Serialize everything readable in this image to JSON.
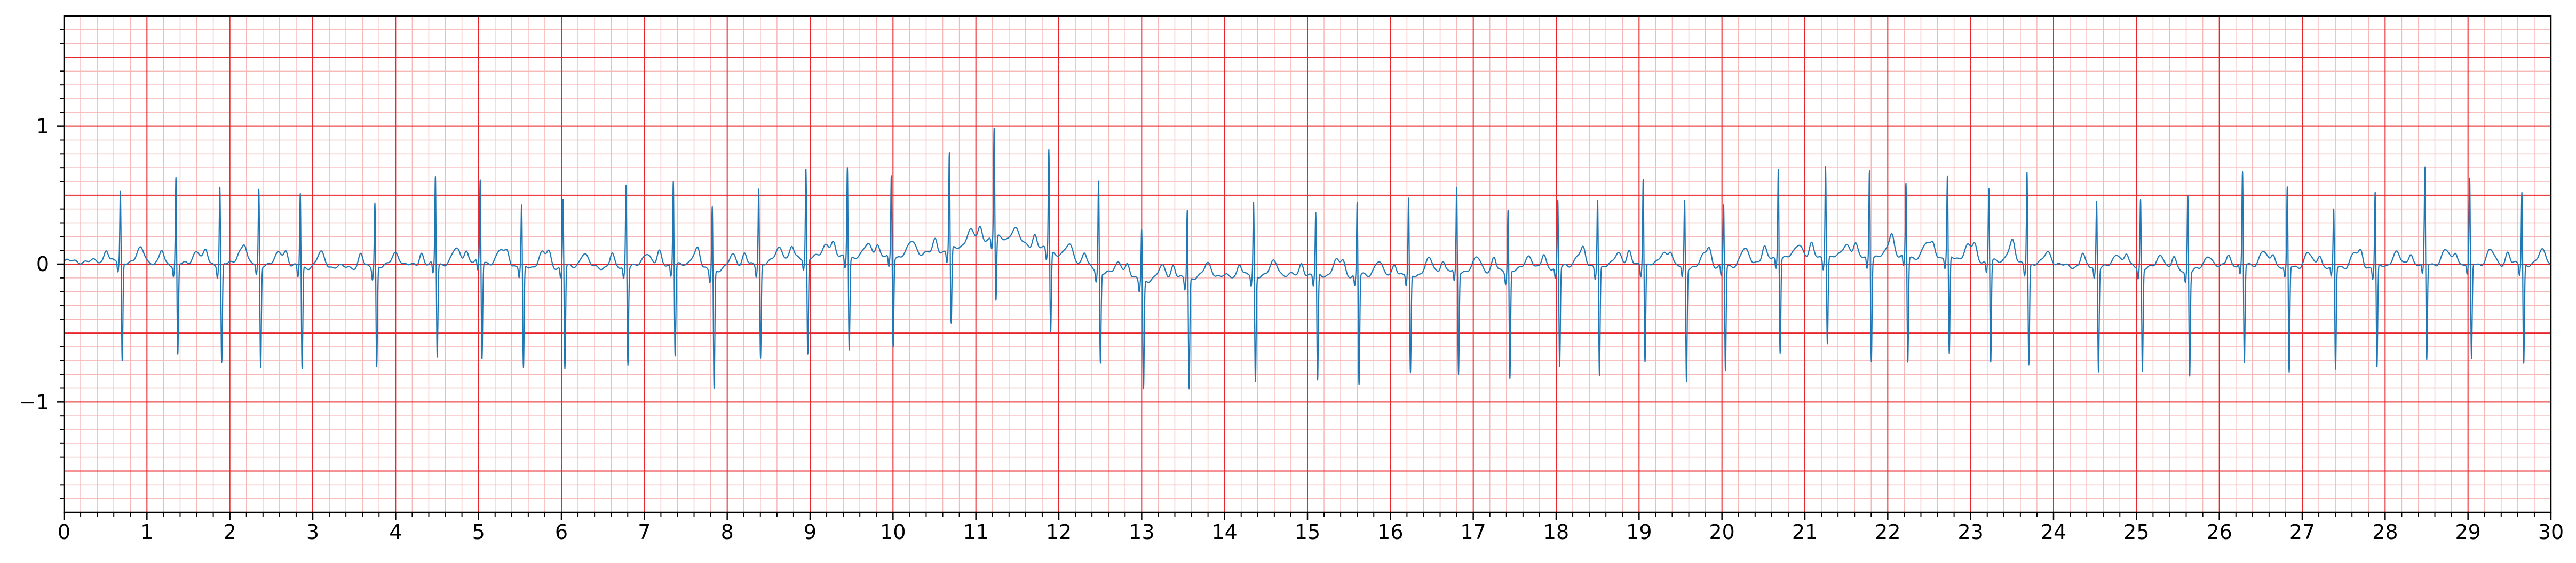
{
  "chart_data": {
    "type": "line",
    "title": "",
    "xlabel": "",
    "ylabel": "",
    "xlim": [
      0,
      30
    ],
    "ylim": [
      -1.8,
      1.8
    ],
    "x_ticks": [
      "0",
      "1",
      "2",
      "3",
      "4",
      "5",
      "6",
      "7",
      "8",
      "9",
      "10",
      "11",
      "12",
      "13",
      "14",
      "15",
      "16",
      "17",
      "18",
      "19",
      "20",
      "21",
      "22",
      "23",
      "24",
      "25",
      "26",
      "27",
      "28",
      "29",
      "30"
    ],
    "y_ticks": [
      {
        "value": -1,
        "label": "−1"
      },
      {
        "value": 0,
        "label": "0"
      },
      {
        "value": 1,
        "label": "1"
      }
    ],
    "grid": true,
    "colors": {
      "major_grid": "#e8262b",
      "minor_grid": "#f6b7b7",
      "trace": "#1f77b4",
      "axes": "#000000"
    },
    "series": [
      {
        "name": "",
        "beats": [
          {
            "t": 0.68,
            "r": 0.52,
            "s": -0.72,
            "base": 0.02
          },
          {
            "t": 1.35,
            "r": 0.64,
            "s": -0.66,
            "base": 0.0
          },
          {
            "t": 1.88,
            "r": 0.58,
            "s": -0.72,
            "base": 0.0
          },
          {
            "t": 2.35,
            "r": 0.56,
            "s": -0.74,
            "base": 0.0
          },
          {
            "t": 2.85,
            "r": 0.55,
            "s": -0.74,
            "base": -0.02
          },
          {
            "t": 3.75,
            "r": 0.49,
            "s": -0.72,
            "base": -0.02
          },
          {
            "t": 4.48,
            "r": 0.65,
            "s": -0.67,
            "base": 0.0
          },
          {
            "t": 5.02,
            "r": 0.6,
            "s": -0.7,
            "base": 0.02
          },
          {
            "t": 5.52,
            "r": 0.45,
            "s": -0.75,
            "base": -0.02
          },
          {
            "t": 6.02,
            "r": 0.51,
            "s": -0.74,
            "base": -0.02
          },
          {
            "t": 6.78,
            "r": 0.62,
            "s": -0.7,
            "base": -0.02
          },
          {
            "t": 7.35,
            "r": 0.63,
            "s": -0.66,
            "base": 0.0
          },
          {
            "t": 7.82,
            "r": 0.5,
            "s": -0.85,
            "base": -0.05
          },
          {
            "t": 8.38,
            "r": 0.57,
            "s": -0.68,
            "base": 0.0
          },
          {
            "t": 8.95,
            "r": 0.66,
            "s": -0.7,
            "base": 0.05
          },
          {
            "t": 9.45,
            "r": 0.68,
            "s": -0.66,
            "base": 0.05
          },
          {
            "t": 9.98,
            "r": 0.61,
            "s": -0.64,
            "base": 0.05
          },
          {
            "t": 10.68,
            "r": 0.72,
            "s": -0.55,
            "base": 0.1
          },
          {
            "t": 11.22,
            "r": 0.8,
            "s": -0.47,
            "base": 0.2
          },
          {
            "t": 11.88,
            "r": 0.75,
            "s": -0.58,
            "base": 0.1
          },
          {
            "t": 12.48,
            "r": 0.67,
            "s": -0.66,
            "base": -0.05
          },
          {
            "t": 13.0,
            "r": 0.4,
            "s": -0.78,
            "base": -0.12
          },
          {
            "t": 13.55,
            "r": 0.52,
            "s": -0.8,
            "base": -0.1
          },
          {
            "t": 14.35,
            "r": 0.54,
            "s": -0.77,
            "base": -0.08
          },
          {
            "t": 15.1,
            "r": 0.46,
            "s": -0.78,
            "base": -0.08
          },
          {
            "t": 15.6,
            "r": 0.54,
            "s": -0.8,
            "base": -0.08
          },
          {
            "t": 16.22,
            "r": 0.56,
            "s": -0.72,
            "base": -0.08
          },
          {
            "t": 16.8,
            "r": 0.62,
            "s": -0.74,
            "base": -0.05
          },
          {
            "t": 17.42,
            "r": 0.47,
            "s": -0.78,
            "base": -0.05
          },
          {
            "t": 18.02,
            "r": 0.5,
            "s": -0.72,
            "base": -0.02
          },
          {
            "t": 18.5,
            "r": 0.52,
            "s": -0.78,
            "base": -0.02
          },
          {
            "t": 19.05,
            "r": 0.65,
            "s": -0.7,
            "base": 0.0
          },
          {
            "t": 19.55,
            "r": 0.5,
            "s": -0.82,
            "base": -0.02
          },
          {
            "t": 20.02,
            "r": 0.46,
            "s": -0.76,
            "base": -0.02
          },
          {
            "t": 20.68,
            "r": 0.67,
            "s": -0.68,
            "base": 0.05
          },
          {
            "t": 21.25,
            "r": 0.69,
            "s": -0.62,
            "base": 0.05
          },
          {
            "t": 21.78,
            "r": 0.66,
            "s": -0.74,
            "base": 0.05
          },
          {
            "t": 22.22,
            "r": 0.55,
            "s": -0.76,
            "base": 0.05
          },
          {
            "t": 22.72,
            "r": 0.59,
            "s": -0.72,
            "base": 0.05
          },
          {
            "t": 23.22,
            "r": 0.55,
            "s": -0.73,
            "base": 0.02
          },
          {
            "t": 23.68,
            "r": 0.7,
            "s": -0.72,
            "base": 0.0
          },
          {
            "t": 24.52,
            "r": 0.5,
            "s": -0.75,
            "base": -0.02
          },
          {
            "t": 25.05,
            "r": 0.51,
            "s": -0.75,
            "base": -0.02
          },
          {
            "t": 25.62,
            "r": 0.57,
            "s": -0.75,
            "base": -0.05
          },
          {
            "t": 26.28,
            "r": 0.67,
            "s": -0.72,
            "base": 0.0
          },
          {
            "t": 26.82,
            "r": 0.58,
            "s": -0.78,
            "base": -0.02
          },
          {
            "t": 27.38,
            "r": 0.42,
            "s": -0.75,
            "base": -0.02
          },
          {
            "t": 27.88,
            "r": 0.56,
            "s": -0.74,
            "base": -0.02
          },
          {
            "t": 28.48,
            "r": 0.7,
            "s": -0.7,
            "base": 0.0
          },
          {
            "t": 29.02,
            "r": 0.62,
            "s": -0.7,
            "base": 0.0
          },
          {
            "t": 29.65,
            "r": 0.54,
            "s": -0.72,
            "base": 0.0
          }
        ]
      }
    ]
  }
}
